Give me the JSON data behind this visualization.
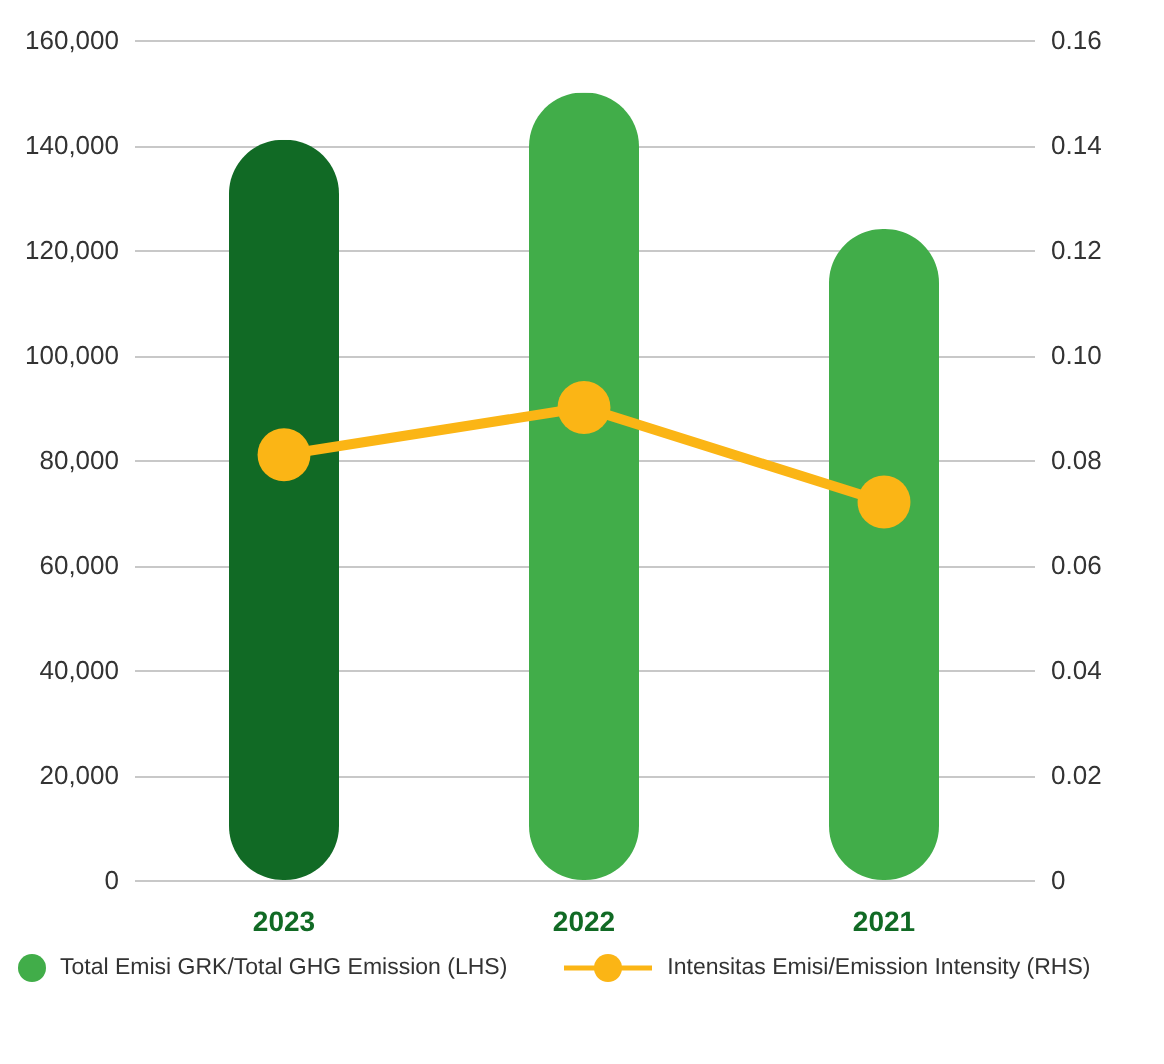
{
  "chart_data": {
    "type": "bar",
    "categories": [
      "2023",
      "2022",
      "2021"
    ],
    "series": [
      {
        "name": "Total Emisi GRK/Total GHG Emission (LHS)",
        "color": "#41ad49",
        "colors": [
          "#116a25",
          "#41ad49",
          "#41ad49"
        ],
        "values": [
          141000,
          150000,
          124000
        ]
      },
      {
        "name": "Intensitas Emisi/Emission Intensity (RHS)",
        "type": "line",
        "axis": "y2",
        "color": "#fbb515",
        "marker": "circle",
        "values": [
          0.081,
          0.09,
          0.072
        ]
      }
    ],
    "ylim": [
      0,
      160000
    ],
    "yticks": [
      0,
      {
        "value": 20000,
        "label": "20,000"
      },
      {
        "value": 40000,
        "label": "40,000"
      },
      {
        "value": 60000,
        "label": "60,000"
      },
      {
        "value": 80000,
        "label": "80,000"
      },
      {
        "value": 100000,
        "label": "100,000"
      },
      {
        "value": 120000,
        "label": "120,000"
      },
      {
        "value": 140000,
        "label": "140,000"
      },
      {
        "value": 160000,
        "label": "160,000"
      }
    ],
    "y2lim": [
      0,
      0.16
    ],
    "y2ticks": [
      0,
      {
        "value": 0.02,
        "label": "0.02"
      },
      {
        "value": 0.04,
        "label": "0.04"
      },
      {
        "value": 0.06,
        "label": "0.06"
      },
      {
        "value": 0.08,
        "label": "0.08"
      },
      {
        "value": 0.1,
        "label": "0.10"
      },
      {
        "value": 0.12,
        "label": "0.12"
      },
      {
        "value": 0.14,
        "label": "0.14"
      },
      {
        "value": 0.16,
        "label": "0.16"
      }
    ],
    "grid": "y",
    "legend": "bottom"
  }
}
